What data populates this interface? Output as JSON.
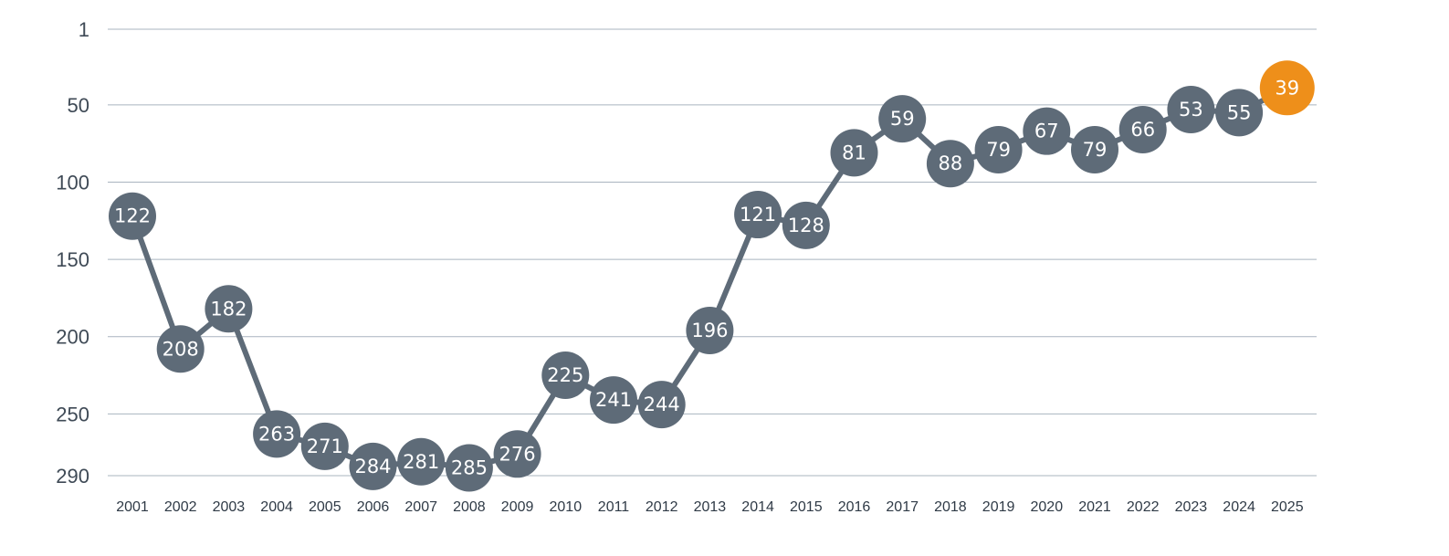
{
  "chart_data": {
    "type": "line",
    "title": "",
    "xlabel": "",
    "ylabel": "",
    "y_inverted": true,
    "ylim": [
      1,
      290
    ],
    "yticks": [
      1,
      50,
      100,
      150,
      200,
      250,
      290
    ],
    "grid": true,
    "x": [
      "2001",
      "2002",
      "2003",
      "2004",
      "2005",
      "2006",
      "2007",
      "2008",
      "2009",
      "2010",
      "2011",
      "2012",
      "2013",
      "2014",
      "2015",
      "2016",
      "2017",
      "2018",
      "2019",
      "2020",
      "2021",
      "2022",
      "2023",
      "2024",
      "2025"
    ],
    "series": [
      {
        "values": [
          122,
          208,
          182,
          263,
          271,
          284,
          281,
          285,
          276,
          225,
          241,
          244,
          196,
          121,
          128,
          81,
          59,
          88,
          79,
          67,
          79,
          66,
          53,
          55,
          39
        ]
      }
    ],
    "colors": {
      "line": "#5e6b78",
      "marker": "#5e6b78",
      "highlight": "#ee8f1a",
      "grid": "#a9b4bf"
    },
    "highlight_index": 24
  }
}
